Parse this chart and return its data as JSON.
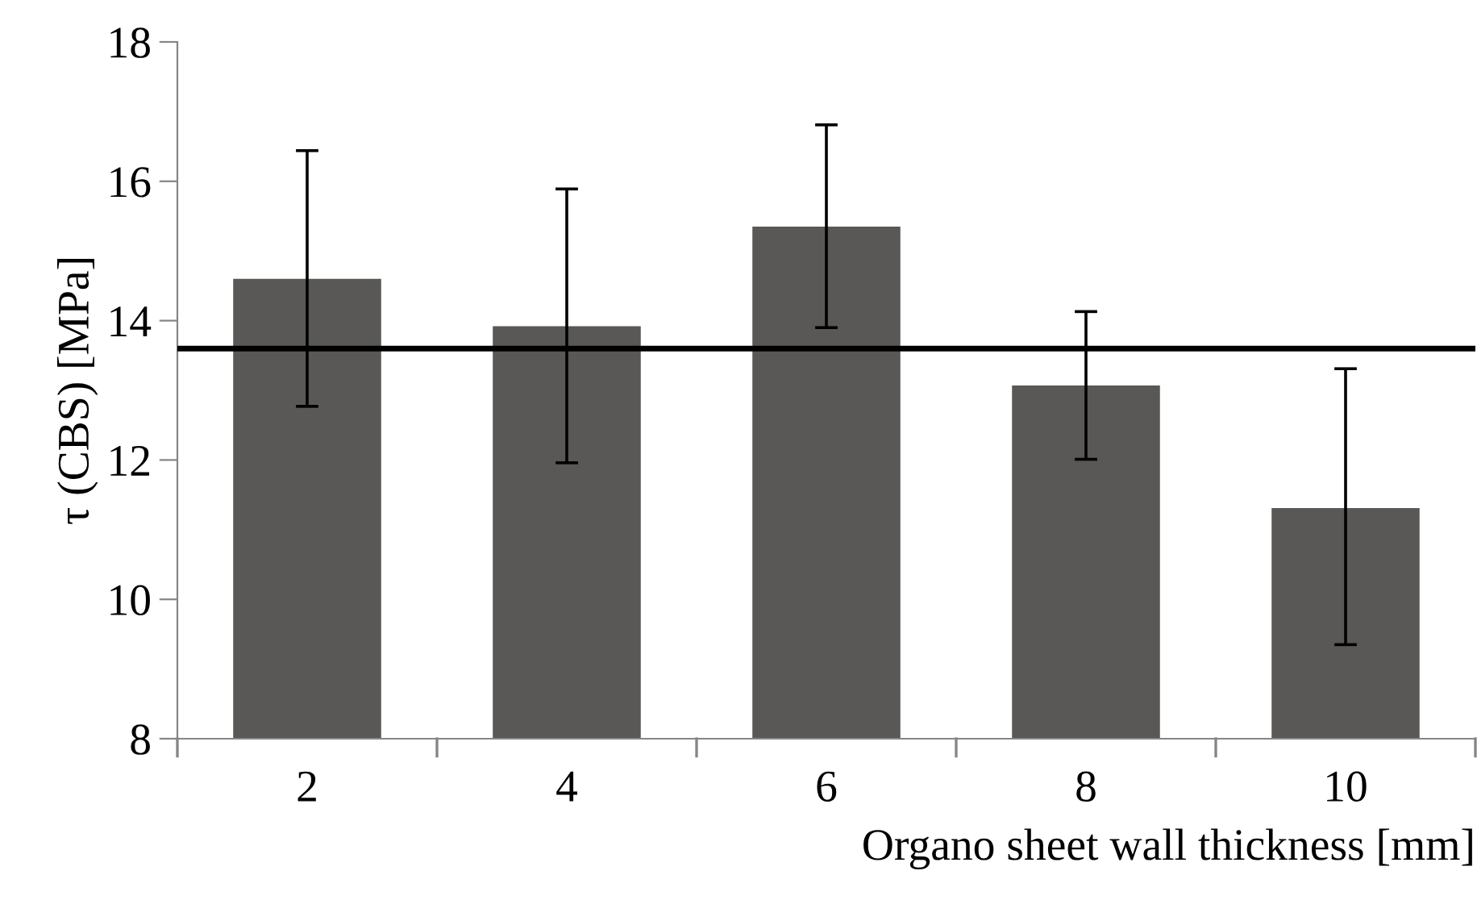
{
  "chart_data": {
    "type": "bar",
    "xlabel": "Organo sheet wall thickness [mm]",
    "ylabel": "τ (CBS) [MPa]",
    "categories": [
      "2",
      "4",
      "6",
      "8",
      "10"
    ],
    "values": [
      14.6,
      13.92,
      15.35,
      13.07,
      11.31
    ],
    "errors": [
      [
        12.77,
        16.44
      ],
      [
        11.96,
        15.89
      ],
      [
        13.9,
        16.81
      ],
      [
        12.01,
        14.13
      ],
      [
        9.35,
        13.31
      ]
    ],
    "color": "#595856",
    "ylim": [
      8,
      18
    ],
    "yticks": [
      8,
      10,
      12,
      14,
      16,
      18
    ],
    "ref_lines": [
      {
        "axis": "y",
        "value": 13.6,
        "color": "#000000"
      }
    ],
    "grid": false,
    "legend": false
  }
}
